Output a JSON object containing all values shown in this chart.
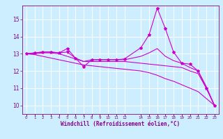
{
  "xlabel": "Windchill (Refroidissement éolien,°C)",
  "bg_color": "#cceeff",
  "line_color": "#cc00cc",
  "grid_color": "#ffffff",
  "x_ticks": [
    0,
    1,
    2,
    3,
    4,
    5,
    6,
    7,
    8,
    9,
    10,
    11,
    12,
    14,
    15,
    16,
    17,
    18,
    19,
    20,
    21,
    22,
    23
  ],
  "ylim": [
    9.5,
    15.8
  ],
  "xlim": [
    -0.5,
    23.5
  ],
  "yticks": [
    10,
    11,
    12,
    13,
    14,
    15
  ],
  "series": {
    "line_spike_x": [
      0,
      1,
      2,
      3,
      4,
      5,
      6,
      7,
      8,
      9,
      10,
      11,
      12,
      14,
      15,
      16,
      17,
      18,
      19,
      20,
      21,
      22,
      23
    ],
    "line_spike_y": [
      13.0,
      13.05,
      13.1,
      13.1,
      13.05,
      13.3,
      12.75,
      12.25,
      12.65,
      12.65,
      12.65,
      12.65,
      12.7,
      13.35,
      14.1,
      15.65,
      14.45,
      13.1,
      12.45,
      12.4,
      12.0,
      11.0,
      10.0
    ],
    "line_mid_x": [
      0,
      1,
      2,
      3,
      4,
      5,
      6,
      7,
      8,
      9,
      10,
      11,
      12,
      14,
      15,
      16,
      17,
      18,
      19,
      20,
      21,
      22,
      23
    ],
    "line_mid_y": [
      13.0,
      13.05,
      13.1,
      13.1,
      13.05,
      13.1,
      12.75,
      12.55,
      12.65,
      12.65,
      12.65,
      12.65,
      12.65,
      12.85,
      13.05,
      13.3,
      12.85,
      12.6,
      12.45,
      12.2,
      12.0,
      11.1,
      10.0
    ],
    "line_low_x": [
      0,
      1,
      2,
      3,
      4,
      5,
      6,
      7,
      8,
      9,
      10,
      11,
      12,
      14,
      15,
      16,
      17,
      18,
      19,
      20,
      21,
      22,
      23
    ],
    "line_low_y": [
      13.0,
      13.0,
      13.05,
      13.05,
      13.0,
      12.85,
      12.7,
      12.55,
      12.55,
      12.55,
      12.55,
      12.55,
      12.55,
      12.45,
      12.4,
      12.35,
      12.3,
      12.25,
      12.2,
      12.0,
      11.85,
      11.0,
      10.0
    ],
    "line_diag_x": [
      0,
      1,
      2,
      3,
      4,
      5,
      6,
      7,
      8,
      9,
      10,
      11,
      12,
      14,
      15,
      16,
      17,
      18,
      19,
      20,
      21,
      22,
      23
    ],
    "line_diag_y": [
      13.0,
      12.95,
      12.85,
      12.75,
      12.65,
      12.55,
      12.45,
      12.35,
      12.3,
      12.25,
      12.2,
      12.15,
      12.1,
      12.0,
      11.9,
      11.75,
      11.55,
      11.4,
      11.2,
      11.0,
      10.8,
      10.4,
      10.0
    ]
  }
}
